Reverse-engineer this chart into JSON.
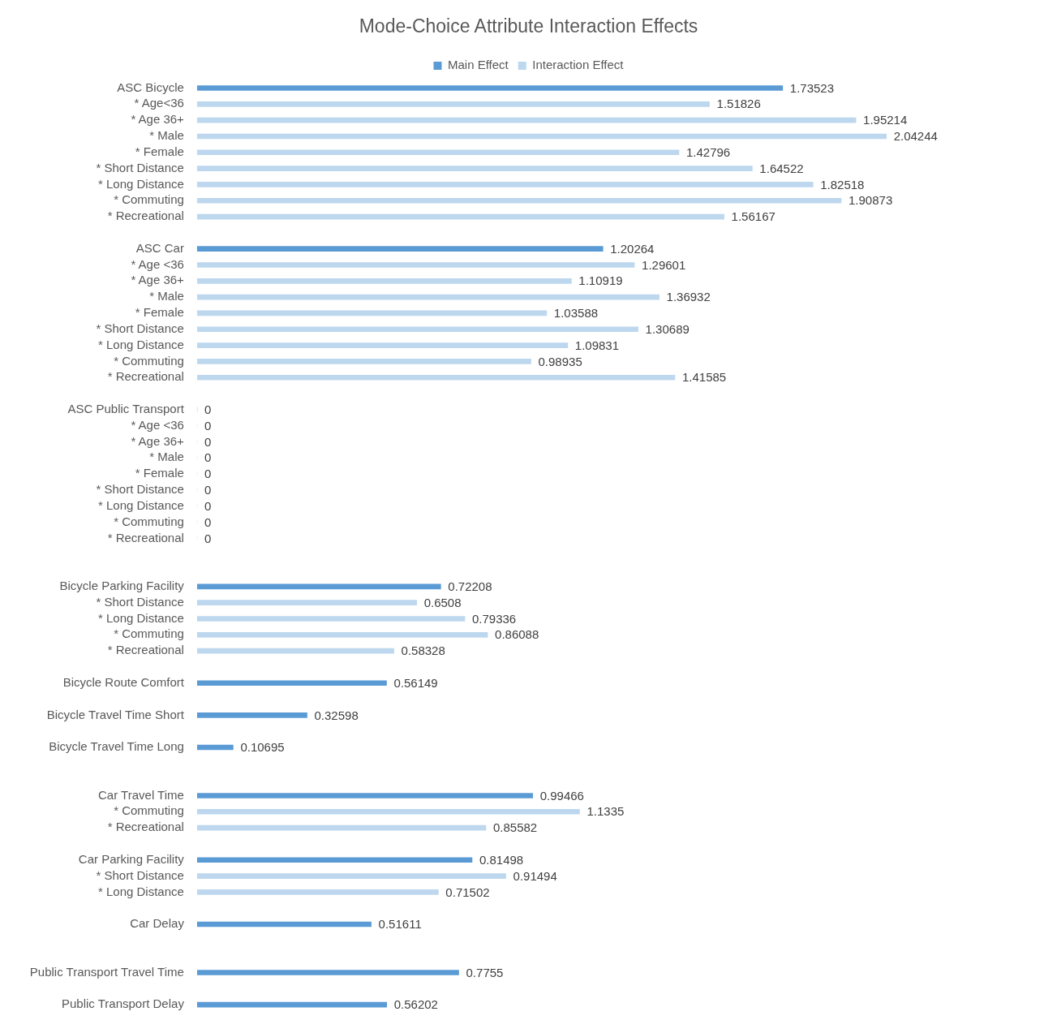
{
  "chart_data": {
    "type": "bar",
    "orientation": "horizontal",
    "title": "Mode-Choice Attribute Interaction Effects",
    "legend": "top",
    "data_labels": true,
    "categories": [
      "ASC Bicycle",
      "* Age<36",
      "* Age 36+",
      "* Male",
      "* Female",
      "* Short Distance",
      "* Long Distance",
      "* Commuting",
      "* Recreational",
      null,
      "ASC Car",
      "* Age <36",
      "* Age 36+",
      "* Male",
      "* Female",
      "* Short Distance",
      "* Long Distance",
      "* Commuting",
      "* Recreational",
      null,
      "ASC Public Transport",
      "* Age <36",
      "* Age 36+",
      "* Male",
      "* Female",
      "* Short Distance",
      "* Long Distance",
      "* Commuting",
      "* Recreational",
      null,
      null,
      "Bicycle Parking Facility",
      "* Short Distance",
      "* Long Distance",
      "* Commuting",
      "* Recreational",
      null,
      "Bicycle Route Comfort",
      null,
      "Bicycle Travel Time Short",
      null,
      "Bicycle Travel Time Long",
      null,
      null,
      "Car Travel Time",
      "* Commuting",
      "* Recreational",
      null,
      "Car Parking Facility",
      "* Short Distance",
      "* Long Distance",
      null,
      "Car Delay",
      null,
      null,
      "Public Transport Travel Time",
      null,
      "Public Transport Delay"
    ],
    "series": [
      {
        "name": "Main Effect",
        "color": "#5b9bd5",
        "values": [
          1.73523,
          null,
          null,
          null,
          null,
          null,
          null,
          null,
          null,
          null,
          1.20264,
          null,
          null,
          null,
          null,
          null,
          null,
          null,
          null,
          null,
          0,
          null,
          null,
          null,
          null,
          null,
          null,
          null,
          null,
          null,
          null,
          0.72208,
          null,
          null,
          null,
          null,
          null,
          0.56149,
          null,
          0.32598,
          null,
          0.10695,
          null,
          null,
          0.99466,
          null,
          null,
          null,
          0.81498,
          null,
          null,
          null,
          0.51611,
          null,
          null,
          0.7755,
          null,
          0.56202
        ]
      },
      {
        "name": "Interaction Effect",
        "color": "#bdd7ee",
        "values": [
          null,
          1.51826,
          1.95214,
          2.04244,
          1.42796,
          1.64522,
          1.82518,
          1.90873,
          1.56167,
          null,
          null,
          1.29601,
          1.10919,
          1.36932,
          1.03588,
          1.30689,
          1.09831,
          0.98935,
          1.41585,
          null,
          null,
          0,
          0,
          0,
          0,
          0,
          0,
          0,
          0,
          null,
          null,
          null,
          0.6508,
          0.79336,
          0.86088,
          0.58328,
          null,
          null,
          null,
          null,
          null,
          null,
          null,
          null,
          null,
          1.1335,
          0.85582,
          null,
          null,
          0.91494,
          0.71502,
          null,
          null,
          null,
          null,
          null,
          null,
          null
        ]
      }
    ]
  }
}
